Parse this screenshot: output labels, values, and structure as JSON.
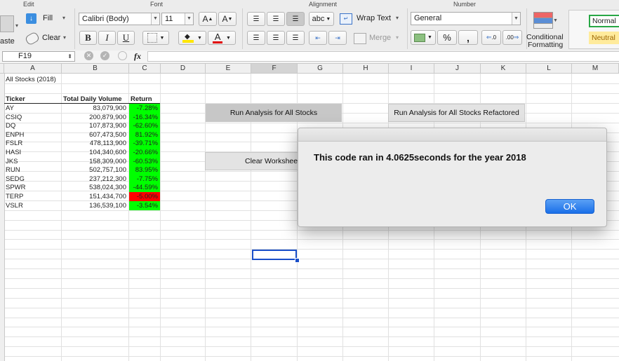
{
  "ribbon": {
    "groups": {
      "edit": "Edit",
      "font": "Font",
      "alignment": "Alignment",
      "number": "Number"
    },
    "paste_label": "aste",
    "fill_label": "Fill",
    "clear_label": "Clear",
    "font_name": "Calibri (Body)",
    "font_size": "11",
    "bold": "B",
    "italic": "I",
    "underline": "U",
    "grow_font": "A",
    "shrink_font": "A",
    "font_color_glyph": "A",
    "orientation_label": "abc",
    "wrap_text_label": "Wrap Text",
    "merge_label": "Merge",
    "number_format": "General",
    "percent": "%",
    "comma": ",",
    "inc_decimal": ".0",
    "dec_decimal": ".00",
    "conditional_formatting": [
      "Conditional",
      "Formatting"
    ],
    "style_normal": "Normal",
    "style_neutral": "Neutral",
    "colors": {
      "fill_highlight": "#ffe600",
      "font_color": "#e00000",
      "neutral_bg": "#ffeb9c",
      "normal_border": "#28a745"
    }
  },
  "formula_bar": {
    "name_box": "F19",
    "fx": "fx"
  },
  "columns": [
    "A",
    "B",
    "C",
    "D",
    "E",
    "F",
    "G",
    "H",
    "I",
    "J",
    "K",
    "L",
    "M"
  ],
  "sheet": {
    "title": "All Stocks (2018)",
    "headers": {
      "ticker": "Ticker",
      "volume": "Total Daily Volume",
      "return": "Return"
    },
    "rows": [
      {
        "ticker": "AY",
        "volume": "83,079,900",
        "return": "-7.28%",
        "status": "positive"
      },
      {
        "ticker": "CSIQ",
        "volume": "200,879,900",
        "return": "-16.34%",
        "status": "positive"
      },
      {
        "ticker": "DQ",
        "volume": "107,873,900",
        "return": "-62.60%",
        "status": "positive"
      },
      {
        "ticker": "ENPH",
        "volume": "607,473,500",
        "return": "81.92%",
        "status": "positive"
      },
      {
        "ticker": "FSLR",
        "volume": "478,113,900",
        "return": "-39.71%",
        "status": "positive"
      },
      {
        "ticker": "HASI",
        "volume": "104,340,600",
        "return": "-20.66%",
        "status": "positive"
      },
      {
        "ticker": "JKS",
        "volume": "158,309,000",
        "return": "-60.53%",
        "status": "positive"
      },
      {
        "ticker": "RUN",
        "volume": "502,757,100",
        "return": "83.95%",
        "status": "positive"
      },
      {
        "ticker": "SEDG",
        "volume": "237,212,300",
        "return": "-7.75%",
        "status": "positive"
      },
      {
        "ticker": "SPWR",
        "volume": "538,024,300",
        "return": "-44.59%",
        "status": "positive"
      },
      {
        "ticker": "TERP",
        "volume": "151,434,700",
        "return": "-5.00%",
        "status": "negative"
      },
      {
        "ticker": "VSLR",
        "volume": "136,539,100",
        "return": "-3.54%",
        "status": "positive"
      }
    ],
    "colors": {
      "positive": "#00ff00",
      "negative": "#ff0000"
    }
  },
  "buttons": {
    "run_all": "Run Analysis for All Stocks",
    "run_refactored": "Run Analysis for All Stocks Refactored",
    "clear": "Clear Worksheet"
  },
  "dialog": {
    "message": "This code ran in 4.0625seconds for the year 2018",
    "ok": "OK"
  }
}
